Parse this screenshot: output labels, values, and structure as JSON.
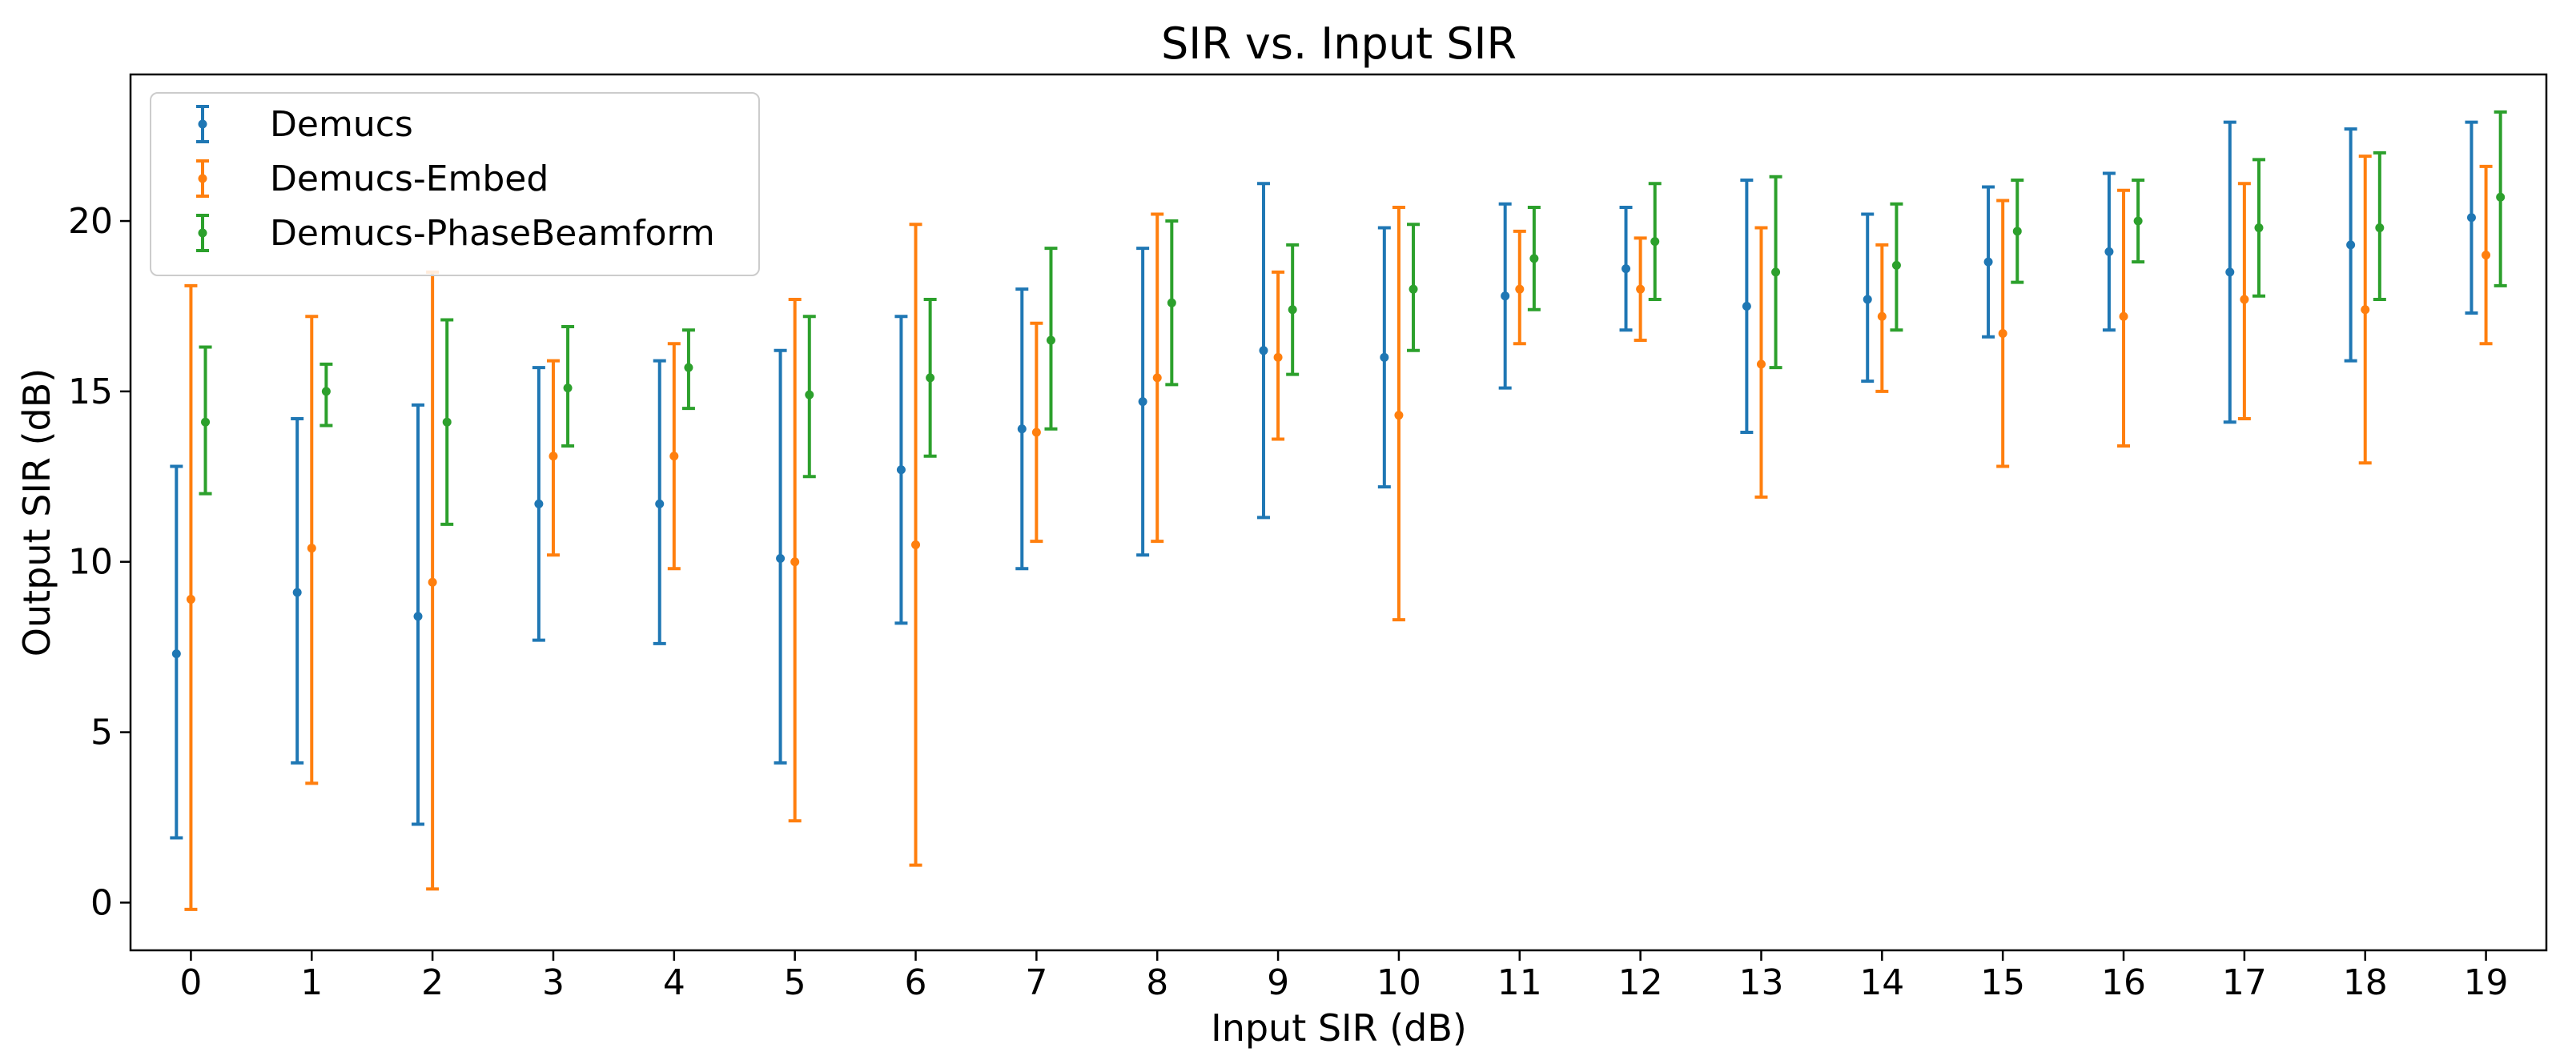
{
  "chart_data": {
    "type": "errorbar",
    "title": "SIR vs. Input SIR",
    "xlabel": "Input SIR (dB)",
    "ylabel": "Output SIR (dB)",
    "x": [
      0,
      1,
      2,
      3,
      4,
      5,
      6,
      7,
      8,
      9,
      10,
      11,
      12,
      13,
      14,
      15,
      16,
      17,
      18,
      19
    ],
    "xlim": [
      -0.5,
      19.5
    ],
    "ylim": [
      -1.4,
      24.3
    ],
    "yticks": [
      0,
      5,
      10,
      15,
      20
    ],
    "grid": false,
    "legend_position": "top-left",
    "series": [
      {
        "name": "Demucs",
        "color": "#1f77b4",
        "offset": -0.12,
        "mean": [
          7.3,
          9.1,
          8.4,
          11.7,
          11.7,
          10.1,
          12.7,
          13.9,
          14.7,
          16.2,
          16.0,
          17.8,
          18.6,
          17.5,
          17.7,
          18.8,
          19.1,
          18.5,
          19.3,
          20.1
        ],
        "lower": [
          1.9,
          4.1,
          2.3,
          7.7,
          7.6,
          4.1,
          8.2,
          9.8,
          10.2,
          11.3,
          12.2,
          15.1,
          16.8,
          13.8,
          15.3,
          16.6,
          16.8,
          14.1,
          15.9,
          17.3
        ],
        "upper": [
          12.8,
          14.2,
          14.6,
          15.7,
          15.9,
          16.2,
          17.2,
          18.0,
          19.2,
          21.1,
          19.8,
          20.5,
          20.4,
          21.2,
          20.2,
          21.0,
          21.4,
          22.9,
          22.7,
          22.9
        ]
      },
      {
        "name": "Demucs-Embed",
        "color": "#ff7f0e",
        "offset": 0.0,
        "mean": [
          8.9,
          10.4,
          9.4,
          13.1,
          13.1,
          10.0,
          10.5,
          13.8,
          15.4,
          16.0,
          14.3,
          18.0,
          18.0,
          15.8,
          17.2,
          16.7,
          17.2,
          17.7,
          17.4,
          19.0
        ],
        "lower": [
          -0.2,
          3.5,
          0.4,
          10.2,
          9.8,
          2.4,
          1.1,
          10.6,
          10.6,
          13.6,
          8.3,
          16.4,
          16.5,
          11.9,
          15.0,
          12.8,
          13.4,
          14.2,
          12.9,
          16.4
        ],
        "upper": [
          18.1,
          17.2,
          18.5,
          15.9,
          16.4,
          17.7,
          19.9,
          17.0,
          20.2,
          18.5,
          20.4,
          19.7,
          19.5,
          19.8,
          19.3,
          20.6,
          20.9,
          21.1,
          21.9,
          21.6
        ]
      },
      {
        "name": "Demucs-PhaseBeamform",
        "color": "#2ca02c",
        "offset": 0.12,
        "mean": [
          14.1,
          15.0,
          14.1,
          15.1,
          15.7,
          14.9,
          15.4,
          16.5,
          17.6,
          17.4,
          18.0,
          18.9,
          19.4,
          18.5,
          18.7,
          19.7,
          20.0,
          19.8,
          19.8,
          20.7
        ],
        "lower": [
          12.0,
          14.0,
          11.1,
          13.4,
          14.5,
          12.5,
          13.1,
          13.9,
          15.2,
          15.5,
          16.2,
          17.4,
          17.7,
          15.7,
          16.8,
          18.2,
          18.8,
          17.8,
          17.7,
          18.1
        ],
        "upper": [
          16.3,
          15.8,
          17.1,
          16.9,
          16.8,
          17.2,
          17.7,
          19.2,
          20.0,
          19.3,
          19.9,
          20.4,
          21.1,
          21.3,
          20.5,
          21.2,
          21.2,
          21.8,
          22.0,
          23.2
        ]
      }
    ]
  }
}
